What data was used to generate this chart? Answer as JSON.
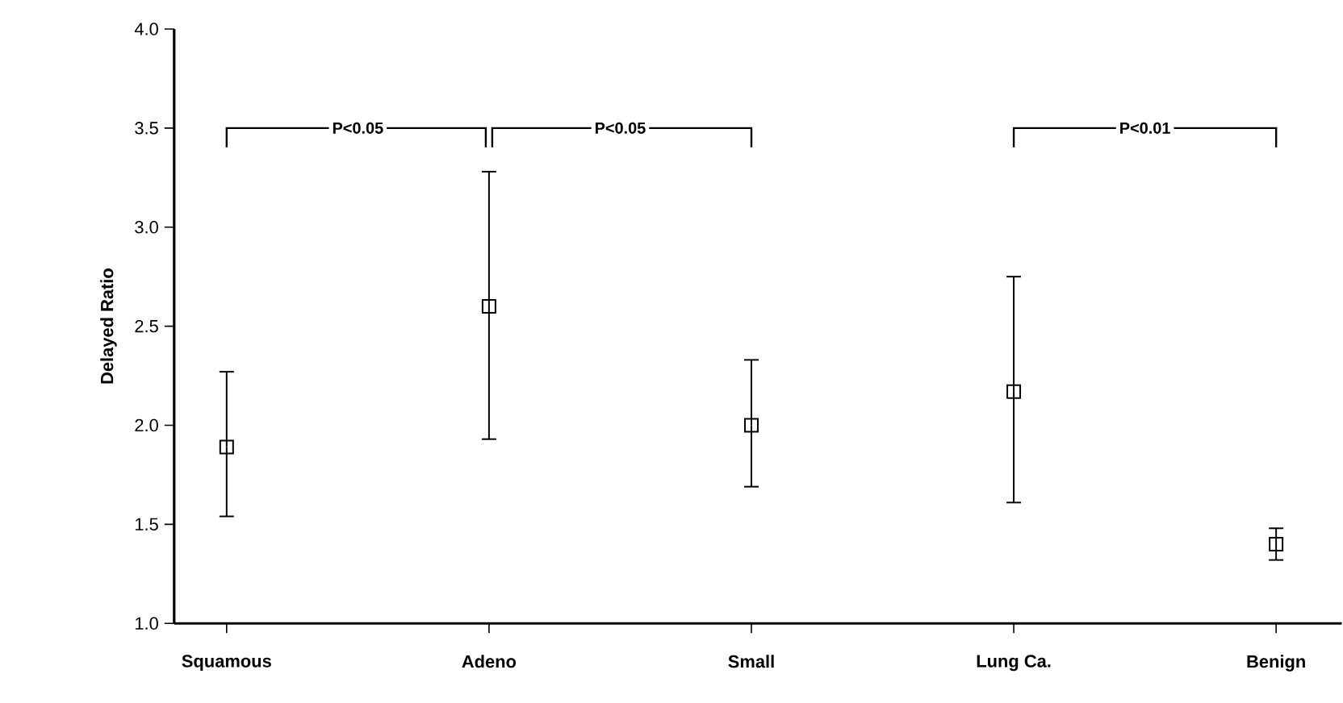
{
  "chart_data": {
    "type": "scatter",
    "ylabel": "Delayed Ratio",
    "categories": [
      "Squamous",
      "Adeno",
      "Small",
      "Lung Ca.",
      "Benign"
    ],
    "values": [
      1.89,
      2.6,
      2.0,
      2.17,
      1.4
    ],
    "errors": [
      [
        1.54,
        2.27
      ],
      [
        1.93,
        3.28
      ],
      [
        1.69,
        2.33
      ],
      [
        1.61,
        2.75
      ],
      [
        1.32,
        1.48
      ]
    ],
    "color": "#000000",
    "marker": "square",
    "ylim": [
      1.0,
      4.0
    ],
    "yticks": [
      {
        "value": 1.0,
        "label": "1.0"
      },
      {
        "value": 1.5,
        "label": "1.5"
      },
      {
        "value": 2.0,
        "label": "2.0"
      },
      {
        "value": 2.5,
        "label": "2.5"
      },
      {
        "value": 3.0,
        "label": "3.0"
      },
      {
        "value": 3.5,
        "label": "3.5"
      },
      {
        "value": 4.0,
        "label": "4.0"
      }
    ],
    "annotations": [
      "P<0.05",
      "P<0.05",
      "P<0.01"
    ],
    "grid": false
  }
}
